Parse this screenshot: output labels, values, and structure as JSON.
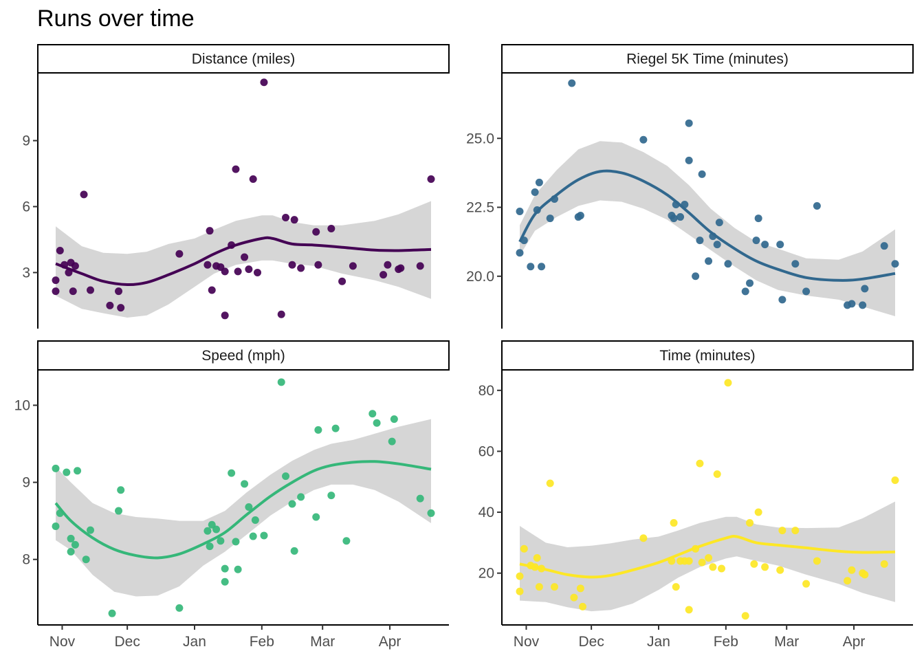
{
  "title": "Runs over time",
  "chart_data": [
    {
      "type": "scatter",
      "title": "Distance (miles)",
      "color": "#440154",
      "yticks": [
        3,
        6,
        9
      ],
      "ytick_labels": [
        "3",
        "6",
        "9"
      ],
      "ylim": [
        0.45,
        12.05
      ],
      "xticks": [
        "Nov",
        "Dec",
        "Jan",
        "Feb",
        "Mar",
        "Apr"
      ],
      "points": [
        {
          "x": "2021-10-29",
          "y": 2.65
        },
        {
          "x": "2021-10-29",
          "y": 2.15
        },
        {
          "x": "2021-10-31",
          "y": 4.0
        },
        {
          "x": "2021-11-02",
          "y": 3.35
        },
        {
          "x": "2021-11-04",
          "y": 3.0
        },
        {
          "x": "2021-11-05",
          "y": 3.45
        },
        {
          "x": "2021-11-06",
          "y": 2.15
        },
        {
          "x": "2021-11-07",
          "y": 3.3
        },
        {
          "x": "2021-11-11",
          "y": 6.55
        },
        {
          "x": "2021-11-14",
          "y": 2.2
        },
        {
          "x": "2021-11-23",
          "y": 1.5
        },
        {
          "x": "2021-11-27",
          "y": 2.15
        },
        {
          "x": "2021-11-28",
          "y": 1.4
        },
        {
          "x": "2021-12-25",
          "y": 3.85
        },
        {
          "x": "2022-01-07",
          "y": 3.35
        },
        {
          "x": "2022-01-08",
          "y": 4.9
        },
        {
          "x": "2022-01-09",
          "y": 2.2
        },
        {
          "x": "2022-01-11",
          "y": 3.3
        },
        {
          "x": "2022-01-13",
          "y": 3.25
        },
        {
          "x": "2022-01-15",
          "y": 3.05
        },
        {
          "x": "2022-01-15",
          "y": 1.05
        },
        {
          "x": "2022-01-18",
          "y": 4.25
        },
        {
          "x": "2022-01-20",
          "y": 7.7
        },
        {
          "x": "2022-01-21",
          "y": 3.05
        },
        {
          "x": "2022-01-24",
          "y": 3.7
        },
        {
          "x": "2022-01-26",
          "y": 3.15
        },
        {
          "x": "2022-01-28",
          "y": 7.25
        },
        {
          "x": "2022-01-30",
          "y": 3.0
        },
        {
          "x": "2022-02-02",
          "y": 11.65
        },
        {
          "x": "2022-02-10",
          "y": 1.1
        },
        {
          "x": "2022-02-12",
          "y": 5.5
        },
        {
          "x": "2022-02-15",
          "y": 3.35
        },
        {
          "x": "2022-02-16",
          "y": 5.4
        },
        {
          "x": "2022-02-19",
          "y": 3.2
        },
        {
          "x": "2022-02-26",
          "y": 4.85
        },
        {
          "x": "2022-02-27",
          "y": 3.35
        },
        {
          "x": "2022-03-05",
          "y": 5.0
        },
        {
          "x": "2022-03-10",
          "y": 2.6
        },
        {
          "x": "2022-03-15",
          "y": 3.3
        },
        {
          "x": "2022-03-29",
          "y": 2.9
        },
        {
          "x": "2022-03-31",
          "y": 3.35
        },
        {
          "x": "2022-04-05",
          "y": 3.15
        },
        {
          "x": "2022-04-06",
          "y": 3.2
        },
        {
          "x": "2022-04-15",
          "y": 3.3
        },
        {
          "x": "2022-04-20",
          "y": 7.25
        }
      ],
      "smooth": {
        "x": [
          "2021-10-29",
          "2021-11-10",
          "2021-11-20",
          "2021-12-01",
          "2021-12-10",
          "2021-12-20",
          "2022-01-01",
          "2022-01-10",
          "2022-01-20",
          "2022-02-01",
          "2022-02-06",
          "2022-02-15",
          "2022-02-25",
          "2022-03-10",
          "2022-03-25",
          "2022-04-05",
          "2022-04-20"
        ],
        "y": [
          3.4,
          2.95,
          2.6,
          2.45,
          2.55,
          2.9,
          3.4,
          3.85,
          4.25,
          4.55,
          4.55,
          4.3,
          4.25,
          4.15,
          4.02,
          4.0,
          4.05
        ],
        "lower": [
          1.95,
          1.35,
          1.15,
          0.95,
          1.05,
          1.55,
          2.35,
          2.95,
          3.35,
          3.55,
          3.55,
          3.4,
          3.3,
          2.95,
          2.65,
          2.35,
          1.8
        ],
        "upper": [
          5.1,
          4.2,
          3.9,
          3.85,
          3.95,
          4.3,
          4.55,
          4.95,
          5.35,
          5.6,
          5.6,
          5.3,
          5.15,
          5.15,
          5.35,
          5.65,
          6.25
        ]
      }
    },
    {
      "type": "scatter",
      "title": "Riegel 5K Time (minutes)",
      "color": "#31688e",
      "yticks": [
        20.0,
        22.5,
        25.0
      ],
      "ytick_labels": [
        "20.0",
        "22.5",
        "25.0"
      ],
      "ylim": [
        18.1,
        27.35
      ],
      "xticks": [
        "Nov",
        "Dec",
        "Jan",
        "Feb",
        "Mar",
        "Apr"
      ],
      "points": [
        {
          "x": "2021-10-29",
          "y": 22.35
        },
        {
          "x": "2021-10-29",
          "y": 20.85
        },
        {
          "x": "2021-10-31",
          "y": 21.3
        },
        {
          "x": "2021-11-03",
          "y": 20.35
        },
        {
          "x": "2021-11-05",
          "y": 23.05
        },
        {
          "x": "2021-11-06",
          "y": 22.4
        },
        {
          "x": "2021-11-07",
          "y": 23.4
        },
        {
          "x": "2021-11-08",
          "y": 20.35
        },
        {
          "x": "2021-11-12",
          "y": 22.1
        },
        {
          "x": "2021-11-14",
          "y": 22.8
        },
        {
          "x": "2021-11-22",
          "y": 27.0
        },
        {
          "x": "2021-11-25",
          "y": 22.15
        },
        {
          "x": "2021-11-26",
          "y": 22.2
        },
        {
          "x": "2021-12-25",
          "y": 24.95
        },
        {
          "x": "2022-01-07",
          "y": 22.2
        },
        {
          "x": "2022-01-08",
          "y": 22.1
        },
        {
          "x": "2022-01-09",
          "y": 22.6
        },
        {
          "x": "2022-01-11",
          "y": 22.15
        },
        {
          "x": "2022-01-13",
          "y": 22.6
        },
        {
          "x": "2022-01-15",
          "y": 24.2
        },
        {
          "x": "2022-01-15",
          "y": 25.55
        },
        {
          "x": "2022-01-18",
          "y": 20.0
        },
        {
          "x": "2022-01-20",
          "y": 21.3
        },
        {
          "x": "2022-01-21",
          "y": 23.7
        },
        {
          "x": "2022-01-24",
          "y": 20.55
        },
        {
          "x": "2022-01-26",
          "y": 21.45
        },
        {
          "x": "2022-01-28",
          "y": 21.15
        },
        {
          "x": "2022-01-29",
          "y": 21.95
        },
        {
          "x": "2022-02-02",
          "y": 20.45
        },
        {
          "x": "2022-02-10",
          "y": 19.45
        },
        {
          "x": "2022-02-12",
          "y": 19.75
        },
        {
          "x": "2022-02-15",
          "y": 21.3
        },
        {
          "x": "2022-02-16",
          "y": 22.1
        },
        {
          "x": "2022-02-19",
          "y": 21.15
        },
        {
          "x": "2022-02-26",
          "y": 21.15
        },
        {
          "x": "2022-02-27",
          "y": 19.15
        },
        {
          "x": "2022-03-05",
          "y": 20.45
        },
        {
          "x": "2022-03-10",
          "y": 19.45
        },
        {
          "x": "2022-03-15",
          "y": 22.55
        },
        {
          "x": "2022-03-29",
          "y": 18.95
        },
        {
          "x": "2022-03-31",
          "y": 19.0
        },
        {
          "x": "2022-04-05",
          "y": 18.95
        },
        {
          "x": "2022-04-06",
          "y": 19.55
        },
        {
          "x": "2022-04-15",
          "y": 21.1
        },
        {
          "x": "2022-04-20",
          "y": 20.45
        }
      ],
      "smooth": {
        "x": [
          "2021-10-29",
          "2021-11-05",
          "2021-11-15",
          "2021-11-25",
          "2021-12-05",
          "2021-12-15",
          "2021-12-25",
          "2022-01-05",
          "2022-01-15",
          "2022-01-25",
          "2022-02-05",
          "2022-02-15",
          "2022-02-25",
          "2022-03-10",
          "2022-03-25",
          "2022-04-05",
          "2022-04-20"
        ],
        "y": [
          21.25,
          22.25,
          22.95,
          23.5,
          23.8,
          23.75,
          23.45,
          22.95,
          22.3,
          21.6,
          21.0,
          20.55,
          20.25,
          19.95,
          19.85,
          19.9,
          20.1
        ],
        "lower": [
          20.75,
          21.65,
          22.15,
          22.55,
          22.75,
          22.7,
          22.45,
          22.05,
          21.5,
          20.95,
          20.35,
          19.85,
          19.5,
          19.3,
          19.15,
          18.9,
          18.55
        ],
        "upper": [
          21.85,
          22.95,
          23.85,
          24.6,
          24.9,
          24.85,
          24.5,
          24.0,
          23.3,
          22.45,
          21.75,
          21.25,
          21.0,
          20.65,
          20.6,
          20.9,
          21.7
        ]
      }
    },
    {
      "type": "scatter",
      "title": "Speed (mph)",
      "color": "#35b779",
      "yticks": [
        8,
        9,
        10
      ],
      "ytick_labels": [
        "8",
        "9",
        "10"
      ],
      "ylim": [
        7.15,
        10.45
      ],
      "xticks": [
        "Nov",
        "Dec",
        "Jan",
        "Feb",
        "Mar",
        "Apr"
      ],
      "points": [
        {
          "x": "2021-10-29",
          "y": 9.18
        },
        {
          "x": "2021-10-29",
          "y": 8.43
        },
        {
          "x": "2021-10-31",
          "y": 8.6
        },
        {
          "x": "2021-11-03",
          "y": 9.13
        },
        {
          "x": "2021-11-05",
          "y": 8.1
        },
        {
          "x": "2021-11-05",
          "y": 8.27
        },
        {
          "x": "2021-11-07",
          "y": 8.19
        },
        {
          "x": "2021-11-08",
          "y": 9.15
        },
        {
          "x": "2021-11-12",
          "y": 8.0
        },
        {
          "x": "2021-11-14",
          "y": 8.38
        },
        {
          "x": "2021-11-24",
          "y": 7.3
        },
        {
          "x": "2021-11-27",
          "y": 8.63
        },
        {
          "x": "2021-11-28",
          "y": 8.9
        },
        {
          "x": "2021-12-25",
          "y": 7.37
        },
        {
          "x": "2022-01-07",
          "y": 8.37
        },
        {
          "x": "2022-01-08",
          "y": 8.17
        },
        {
          "x": "2022-01-09",
          "y": 8.45
        },
        {
          "x": "2022-01-11",
          "y": 8.39
        },
        {
          "x": "2022-01-13",
          "y": 8.24
        },
        {
          "x": "2022-01-15",
          "y": 7.88
        },
        {
          "x": "2022-01-15",
          "y": 7.71
        },
        {
          "x": "2022-01-18",
          "y": 9.12
        },
        {
          "x": "2022-01-20",
          "y": 8.23
        },
        {
          "x": "2022-01-21",
          "y": 7.87
        },
        {
          "x": "2022-01-24",
          "y": 8.98
        },
        {
          "x": "2022-01-26",
          "y": 8.68
        },
        {
          "x": "2022-01-28",
          "y": 8.3
        },
        {
          "x": "2022-01-29",
          "y": 8.51
        },
        {
          "x": "2022-02-02",
          "y": 8.31
        },
        {
          "x": "2022-02-10",
          "y": 10.3
        },
        {
          "x": "2022-02-12",
          "y": 9.08
        },
        {
          "x": "2022-02-15",
          "y": 8.72
        },
        {
          "x": "2022-02-16",
          "y": 8.11
        },
        {
          "x": "2022-02-19",
          "y": 8.81
        },
        {
          "x": "2022-02-26",
          "y": 8.55
        },
        {
          "x": "2022-02-27",
          "y": 9.68
        },
        {
          "x": "2022-03-05",
          "y": 8.83
        },
        {
          "x": "2022-03-07",
          "y": 9.7
        },
        {
          "x": "2022-03-12",
          "y": 8.24
        },
        {
          "x": "2022-03-24",
          "y": 9.89
        },
        {
          "x": "2022-03-26",
          "y": 9.77
        },
        {
          "x": "2022-04-02",
          "y": 9.53
        },
        {
          "x": "2022-04-03",
          "y": 9.82
        },
        {
          "x": "2022-04-15",
          "y": 8.79
        },
        {
          "x": "2022-04-20",
          "y": 8.6
        }
      ],
      "smooth": {
        "x": [
          "2021-10-29",
          "2021-11-05",
          "2021-11-15",
          "2021-11-25",
          "2021-12-05",
          "2021-12-15",
          "2021-12-25",
          "2022-01-05",
          "2022-01-15",
          "2022-01-25",
          "2022-02-05",
          "2022-02-15",
          "2022-02-25",
          "2022-03-05",
          "2022-03-15",
          "2022-03-25",
          "2022-04-05",
          "2022-04-20"
        ],
        "y": [
          8.73,
          8.5,
          8.28,
          8.13,
          8.05,
          8.02,
          8.07,
          8.2,
          8.35,
          8.58,
          8.82,
          9.0,
          9.15,
          9.22,
          9.26,
          9.27,
          9.24,
          9.17
        ],
        "lower": [
          8.25,
          8.12,
          7.8,
          7.58,
          7.52,
          7.53,
          7.65,
          7.92,
          8.1,
          8.32,
          8.57,
          8.75,
          8.9,
          8.97,
          8.97,
          8.9,
          8.75,
          8.47
        ],
        "upper": [
          9.2,
          9.0,
          8.73,
          8.6,
          8.55,
          8.53,
          8.5,
          8.5,
          8.63,
          8.87,
          9.1,
          9.28,
          9.42,
          9.5,
          9.55,
          9.63,
          9.72,
          9.82
        ]
      }
    },
    {
      "type": "scatter",
      "title": "Time (minutes)",
      "color": "#fde725",
      "yticks": [
        20,
        40,
        60,
        80
      ],
      "ytick_labels": [
        "20",
        "40",
        "60",
        "80"
      ],
      "ylim": [
        3,
        86.5
      ],
      "xticks": [
        "Nov",
        "Dec",
        "Jan",
        "Feb",
        "Mar",
        "Apr"
      ],
      "points": [
        {
          "x": "2021-10-29",
          "y": 19.0
        },
        {
          "x": "2021-10-29",
          "y": 14.0
        },
        {
          "x": "2021-10-31",
          "y": 28.0
        },
        {
          "x": "2021-11-03",
          "y": 22.5
        },
        {
          "x": "2021-11-05",
          "y": 22.0
        },
        {
          "x": "2021-11-06",
          "y": 25.0
        },
        {
          "x": "2021-11-07",
          "y": 15.5
        },
        {
          "x": "2021-11-08",
          "y": 21.5
        },
        {
          "x": "2021-11-12",
          "y": 49.5
        },
        {
          "x": "2021-11-14",
          "y": 15.5
        },
        {
          "x": "2021-11-23",
          "y": 12.0
        },
        {
          "x": "2021-11-26",
          "y": 15.0
        },
        {
          "x": "2021-11-27",
          "y": 9.0
        },
        {
          "x": "2021-12-25",
          "y": 31.5
        },
        {
          "x": "2022-01-07",
          "y": 24.0
        },
        {
          "x": "2022-01-08",
          "y": 36.5
        },
        {
          "x": "2022-01-09",
          "y": 15.5
        },
        {
          "x": "2022-01-11",
          "y": 24.0
        },
        {
          "x": "2022-01-13",
          "y": 24.0
        },
        {
          "x": "2022-01-15",
          "y": 24.0
        },
        {
          "x": "2022-01-15",
          "y": 8.0
        },
        {
          "x": "2022-01-18",
          "y": 28.0
        },
        {
          "x": "2022-01-20",
          "y": 56.0
        },
        {
          "x": "2022-01-21",
          "y": 23.5
        },
        {
          "x": "2022-01-24",
          "y": 25.0
        },
        {
          "x": "2022-01-26",
          "y": 22.0
        },
        {
          "x": "2022-01-28",
          "y": 52.5
        },
        {
          "x": "2022-01-30",
          "y": 21.5
        },
        {
          "x": "2022-02-02",
          "y": 82.5
        },
        {
          "x": "2022-02-10",
          "y": 6.0
        },
        {
          "x": "2022-02-12",
          "y": 36.5
        },
        {
          "x": "2022-02-14",
          "y": 23.0
        },
        {
          "x": "2022-02-16",
          "y": 40.0
        },
        {
          "x": "2022-02-19",
          "y": 22.0
        },
        {
          "x": "2022-02-26",
          "y": 21.0
        },
        {
          "x": "2022-02-27",
          "y": 34.0
        },
        {
          "x": "2022-03-05",
          "y": 34.0
        },
        {
          "x": "2022-03-10",
          "y": 16.5
        },
        {
          "x": "2022-03-15",
          "y": 24.0
        },
        {
          "x": "2022-03-29",
          "y": 17.5
        },
        {
          "x": "2022-03-31",
          "y": 21.0
        },
        {
          "x": "2022-04-05",
          "y": 20.0
        },
        {
          "x": "2022-04-06",
          "y": 19.5
        },
        {
          "x": "2022-04-15",
          "y": 23.0
        },
        {
          "x": "2022-04-20",
          "y": 50.5
        }
      ],
      "smooth": {
        "x": [
          "2021-10-29",
          "2021-11-10",
          "2021-11-20",
          "2021-12-01",
          "2021-12-10",
          "2021-12-20",
          "2022-01-01",
          "2022-01-10",
          "2022-01-20",
          "2022-02-01",
          "2022-02-06",
          "2022-02-15",
          "2022-02-25",
          "2022-03-10",
          "2022-03-25",
          "2022-04-05",
          "2022-04-20"
        ],
        "y": [
          23.0,
          21.2,
          19.5,
          18.7,
          19.3,
          21.0,
          23.5,
          26.0,
          28.8,
          31.5,
          32.0,
          30.0,
          29.2,
          28.3,
          27.2,
          26.8,
          27.0
        ],
        "lower": [
          11.0,
          10.5,
          8.8,
          7.5,
          7.9,
          10.0,
          14.5,
          18.5,
          22.0,
          24.8,
          25.5,
          24.0,
          22.5,
          19.5,
          16.5,
          13.5,
          10.5
        ],
        "upper": [
          35.5,
          30.0,
          28.5,
          29.0,
          29.8,
          31.0,
          32.0,
          34.0,
          36.5,
          38.5,
          38.5,
          36.0,
          35.0,
          34.8,
          35.0,
          38.0,
          43.5
        ]
      }
    }
  ]
}
